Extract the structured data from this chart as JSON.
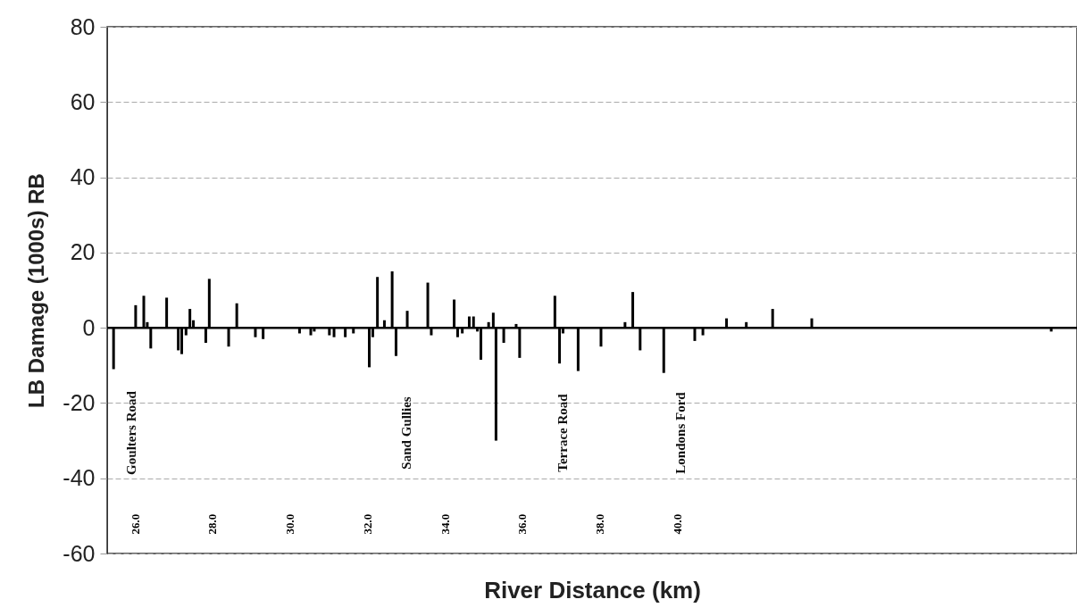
{
  "chart_data": {
    "type": "bar",
    "xlabel": "River Distance (km)",
    "ylabel": "LB   Damage (1000s)   RB",
    "x": [
      25.45,
      26.02,
      26.23,
      26.32,
      26.41,
      26.82,
      27.12,
      27.21,
      27.32,
      27.42,
      27.51,
      27.83,
      27.92,
      28.42,
      28.63,
      29.11,
      29.31,
      30.25,
      30.54,
      30.63,
      31.02,
      31.14,
      31.43,
      31.64,
      32.05,
      32.14,
      32.26,
      32.44,
      32.64,
      32.74,
      33.03,
      33.56,
      33.65,
      34.24,
      34.33,
      34.45,
      34.63,
      34.74,
      34.84,
      34.93,
      35.13,
      35.25,
      35.32,
      35.52,
      35.84,
      35.93,
      36.84,
      36.96,
      37.05,
      37.44,
      38.03,
      38.65,
      38.85,
      39.04,
      39.65,
      40.45,
      40.66,
      41.27,
      41.78,
      42.46,
      43.47,
      49.65
    ],
    "values": [
      -11,
      6,
      8.5,
      1.5,
      -5.5,
      8,
      -6,
      -7,
      -2,
      5,
      2,
      -4,
      13,
      -5,
      6.5,
      -2.5,
      -3,
      -1.5,
      -2,
      -1,
      -2,
      -2.5,
      -2.5,
      -1.5,
      -10.5,
      -2.5,
      13.5,
      2,
      15,
      -7.5,
      4.5,
      12,
      -2,
      7.5,
      -2.5,
      -1.5,
      3,
      3,
      -1,
      -8.5,
      1.5,
      4,
      -30,
      -4,
      1,
      -8,
      8.5,
      -9.5,
      -1.5,
      -11.5,
      -5,
      1.5,
      9.5,
      -6,
      -12,
      -3.5,
      -2,
      2.5,
      1.5,
      5,
      2.5,
      -1
    ],
    "color": "#000000",
    "xlim": [
      25.4,
      50.2
    ],
    "xticks": [
      {
        "value": 26,
        "label": "26.0"
      },
      {
        "value": 28,
        "label": "28.0"
      },
      {
        "value": 30,
        "label": "30.0"
      },
      {
        "value": 32,
        "label": "32.0"
      },
      {
        "value": 34,
        "label": "34.0"
      },
      {
        "value": 36,
        "label": "36.0"
      },
      {
        "value": 38,
        "label": "38.0"
      },
      {
        "value": 40,
        "label": "40.0"
      }
    ],
    "ylim": [
      -60,
      80
    ],
    "yticks": [
      -60,
      -40,
      -20,
      0,
      20,
      40,
      60,
      80
    ],
    "grid": "y",
    "ref_lines": [
      {
        "axis": "y",
        "value": 0,
        "color": "#000000"
      }
    ],
    "annotations": [
      "Goulters Road",
      "Sand Gullies",
      "Terrace Road",
      "Londons Ford"
    ]
  }
}
